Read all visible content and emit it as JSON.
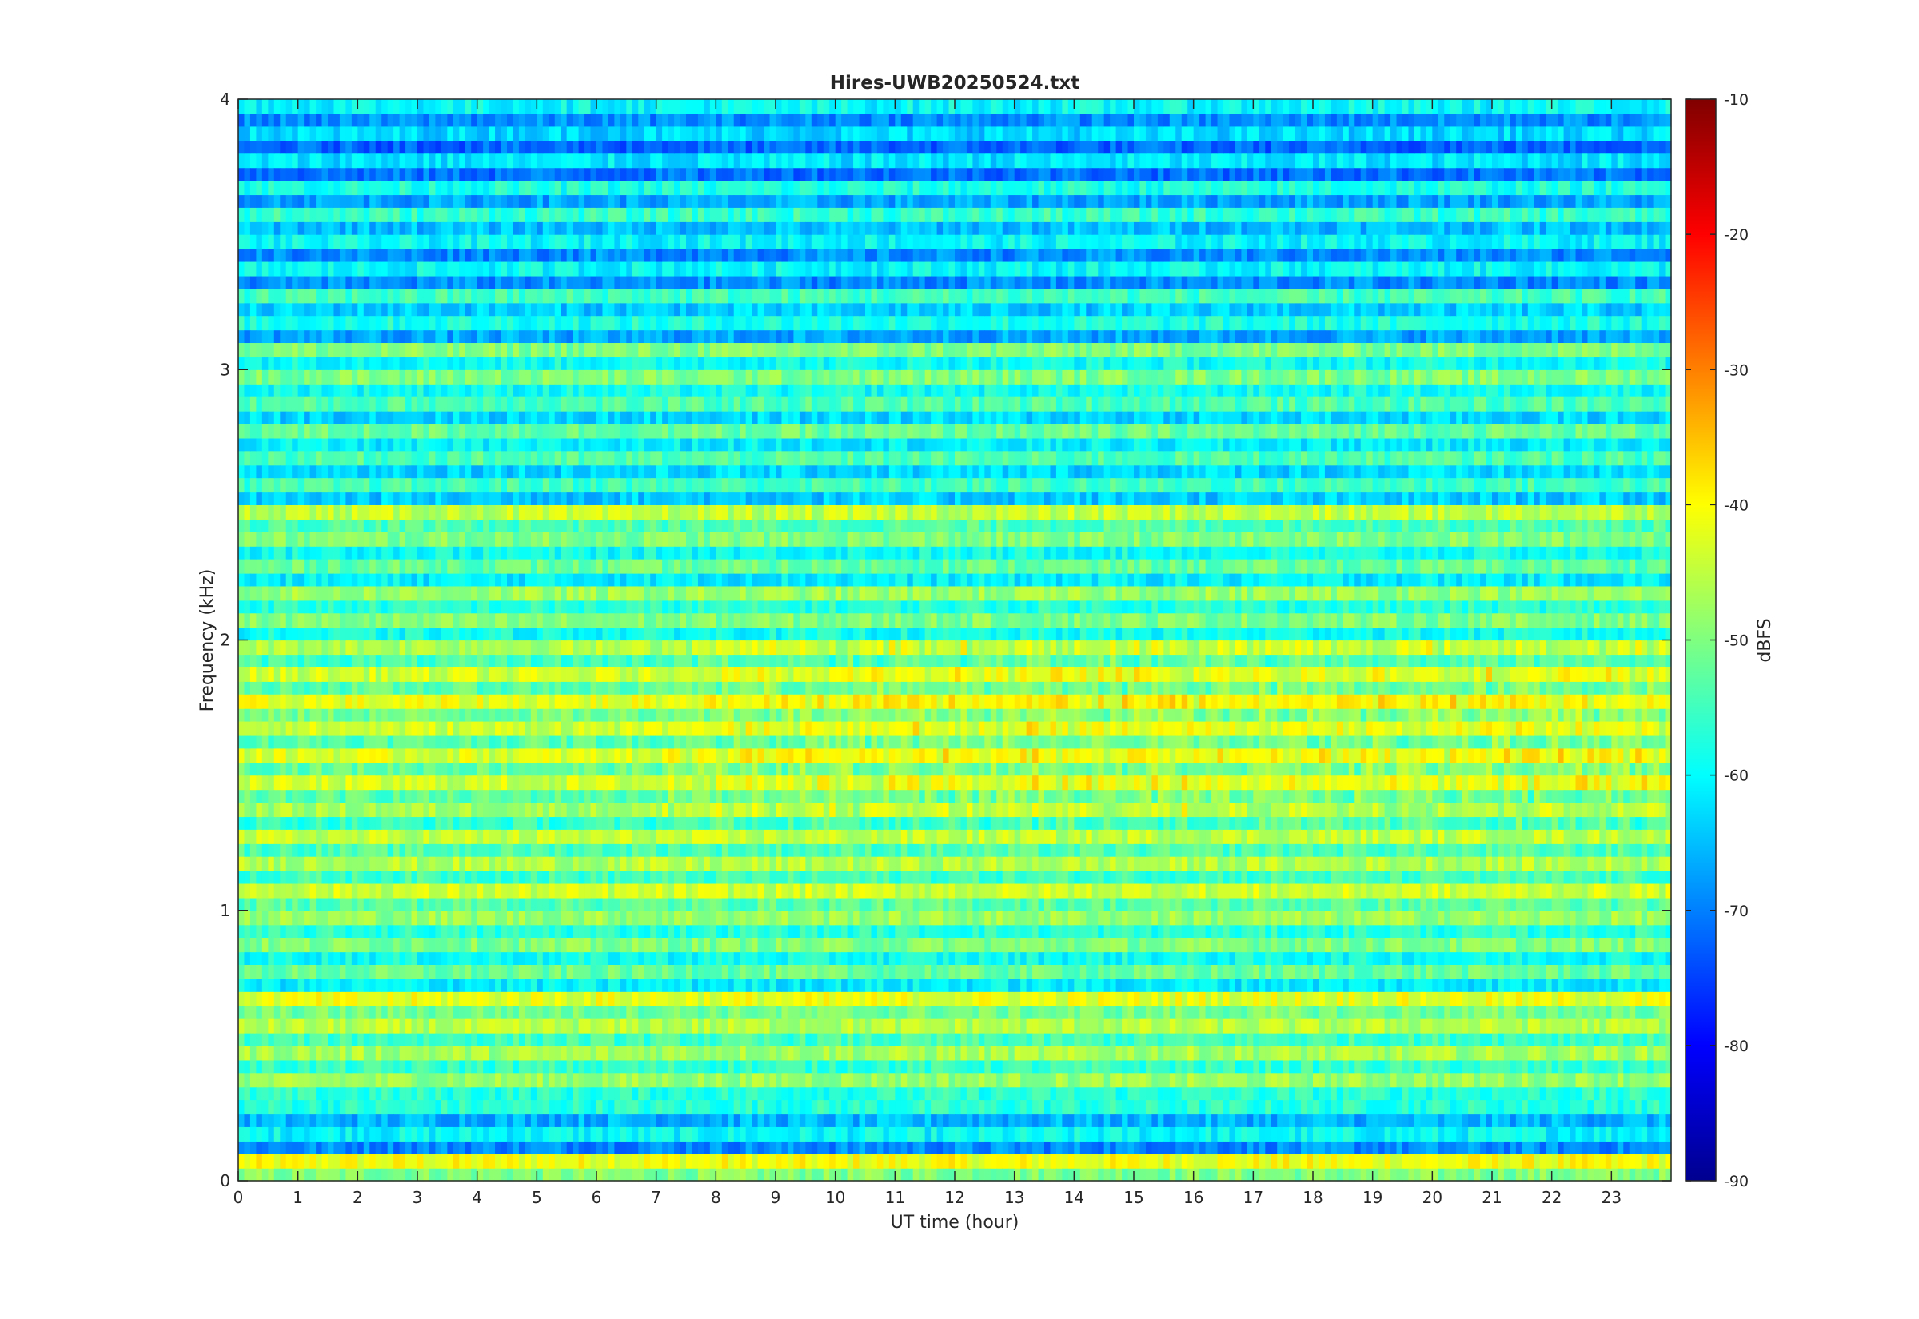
{
  "chart_data": {
    "type": "heatmap",
    "title": "Hires-UWB20250524.txt",
    "xlabel": "UT time (hour)",
    "ylabel": "Frequency (kHz)",
    "xlim": [
      0,
      24
    ],
    "ylim": [
      0,
      4
    ],
    "x_ticks": [
      0,
      1,
      2,
      3,
      4,
      5,
      6,
      7,
      8,
      9,
      10,
      11,
      12,
      13,
      14,
      15,
      16,
      17,
      18,
      19,
      20,
      21,
      22,
      23
    ],
    "y_ticks": [
      0,
      1,
      2,
      3,
      4
    ],
    "colorbar": {
      "label": "dBFS",
      "range": [
        -90,
        -10
      ],
      "ticks": [
        -10,
        -20,
        -30,
        -40,
        -50,
        -60,
        -70,
        -80,
        -90
      ],
      "colormap": "jet"
    },
    "bands_khz": [
      {
        "f": 0.05,
        "level": -41
      },
      {
        "f": 0.15,
        "level": -60
      },
      {
        "f": 0.25,
        "level": -57
      },
      {
        "f": 0.35,
        "level": -48
      },
      {
        "f": 0.45,
        "level": -47
      },
      {
        "f": 0.55,
        "level": -46
      },
      {
        "f": 0.65,
        "level": -42
      },
      {
        "f": 0.75,
        "level": -52
      },
      {
        "f": 0.85,
        "level": -50
      },
      {
        "f": 0.95,
        "level": -48
      },
      {
        "f": 1.05,
        "level": -44
      },
      {
        "f": 1.15,
        "level": -46
      },
      {
        "f": 1.25,
        "level": -45
      },
      {
        "f": 1.35,
        "level": -47
      },
      {
        "f": 1.45,
        "level": -44
      },
      {
        "f": 1.55,
        "level": -43
      },
      {
        "f": 1.65,
        "level": -44
      },
      {
        "f": 1.75,
        "level": -42
      },
      {
        "f": 1.85,
        "level": -44
      },
      {
        "f": 1.95,
        "level": -46
      },
      {
        "f": 2.05,
        "level": -50
      },
      {
        "f": 2.15,
        "level": -48
      },
      {
        "f": 2.25,
        "level": -52
      },
      {
        "f": 2.35,
        "level": -50
      },
      {
        "f": 2.45,
        "level": -45
      },
      {
        "f": 2.55,
        "level": -55
      },
      {
        "f": 2.65,
        "level": -54
      },
      {
        "f": 2.75,
        "level": -52
      },
      {
        "f": 2.85,
        "level": -54
      },
      {
        "f": 2.95,
        "level": -50
      },
      {
        "f": 3.05,
        "level": -50
      },
      {
        "f": 3.15,
        "level": -58
      },
      {
        "f": 3.25,
        "level": -55
      },
      {
        "f": 3.35,
        "level": -60
      },
      {
        "f": 3.45,
        "level": -60
      },
      {
        "f": 3.55,
        "level": -56
      },
      {
        "f": 3.65,
        "level": -58
      },
      {
        "f": 3.75,
        "level": -62
      },
      {
        "f": 3.85,
        "level": -63
      },
      {
        "f": 3.95,
        "level": -60
      }
    ]
  }
}
